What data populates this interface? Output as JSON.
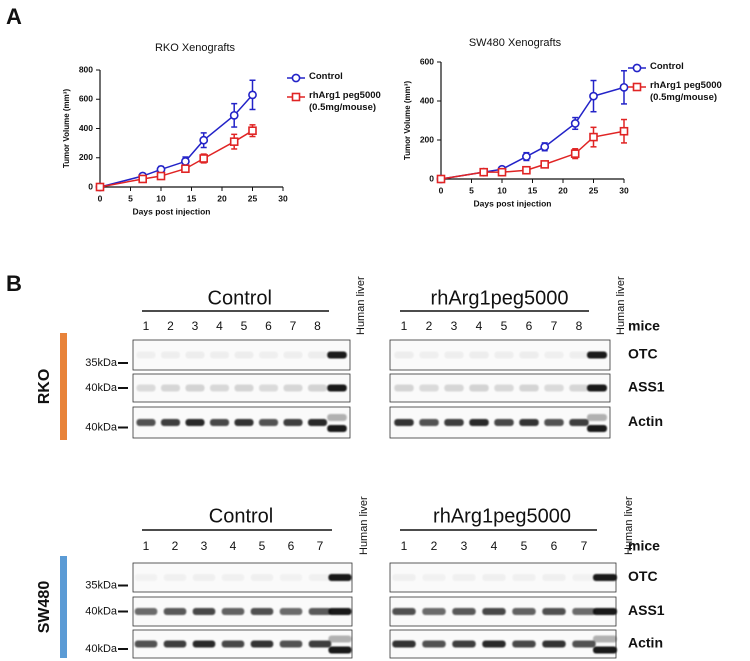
{
  "panel_labels": [
    "A",
    "B"
  ],
  "chart_data": [
    {
      "type": "line",
      "title": "RKO Xenografts",
      "x_label": "Days post injection",
      "y_label": "Tumor Volume (mm³)",
      "x": [
        0,
        7,
        10,
        14,
        17,
        22,
        25
      ],
      "series": [
        {
          "name": "Control",
          "color": "#2323c8",
          "marker": "circle",
          "values": [
            0,
            75,
            120,
            175,
            320,
            490,
            630
          ],
          "errors": [
            0,
            15,
            20,
            30,
            50,
            80,
            100
          ]
        },
        {
          "name": "rhArg1 peg5000 (0.5mg/mouse)",
          "color": "#e02424",
          "marker": "square",
          "values": [
            0,
            55,
            75,
            125,
            195,
            310,
            385
          ],
          "errors": [
            0,
            10,
            15,
            20,
            30,
            50,
            40
          ]
        }
      ],
      "xlim": [
        0,
        30
      ],
      "xticks": [
        0,
        5,
        10,
        15,
        20,
        25,
        30
      ],
      "ylim": [
        0,
        800
      ],
      "yticks": [
        0,
        200,
        400,
        600,
        800
      ]
    },
    {
      "type": "line",
      "title": "SW480 Xenografts",
      "x_label": "Days post injection",
      "y_label": "Tumor Volume (mm³)",
      "x": [
        0,
        7,
        10,
        14,
        17,
        22,
        25,
        30
      ],
      "series": [
        {
          "name": "Control",
          "color": "#2323c8",
          "marker": "circle",
          "values": [
            0,
            35,
            50,
            115,
            165,
            285,
            425,
            470
          ],
          "errors": [
            0,
            10,
            10,
            20,
            20,
            30,
            80,
            85
          ]
        },
        {
          "name": "rhArg1 peg5000 (0.5mg/mouse)",
          "color": "#e02424",
          "marker": "square",
          "values": [
            0,
            35,
            35,
            45,
            75,
            130,
            215,
            245
          ],
          "errors": [
            0,
            8,
            8,
            10,
            15,
            25,
            50,
            60
          ]
        }
      ],
      "xlim": [
        0,
        30
      ],
      "xticks": [
        0,
        5,
        10,
        15,
        20,
        25,
        30
      ],
      "ylim": [
        0,
        600
      ],
      "yticks": [
        0,
        200,
        400,
        600
      ]
    }
  ],
  "blots": [
    {
      "cell_line": "RKO",
      "lanes_label": "mice",
      "reference_lane": "Human liver",
      "groups": [
        {
          "label": "Control",
          "lanes": [
            1,
            2,
            3,
            4,
            5,
            6,
            7,
            8
          ]
        },
        {
          "label": "rhArg1peg5000",
          "lanes": [
            1,
            2,
            3,
            4,
            5,
            6,
            7,
            8
          ]
        }
      ],
      "rows": [
        {
          "marker": "35kDa",
          "protein": "OTC"
        },
        {
          "marker": "40kDa",
          "protein": "ASS1"
        },
        {
          "marker": "40kDa",
          "protein": "Actin"
        }
      ]
    },
    {
      "cell_line": "SW480",
      "lanes_label": "mice",
      "reference_lane": "Human liver",
      "groups": [
        {
          "label": "Control",
          "lanes": [
            1,
            2,
            3,
            4,
            5,
            6,
            7
          ]
        },
        {
          "label": "rhArg1peg5000",
          "lanes": [
            1,
            2,
            3,
            4,
            5,
            6,
            7
          ]
        }
      ],
      "rows": [
        {
          "marker": "35kDa",
          "protein": "OTC"
        },
        {
          "marker": "40kDa",
          "protein": "ASS1"
        },
        {
          "marker": "40kDa",
          "protein": "Actin"
        }
      ]
    }
  ]
}
